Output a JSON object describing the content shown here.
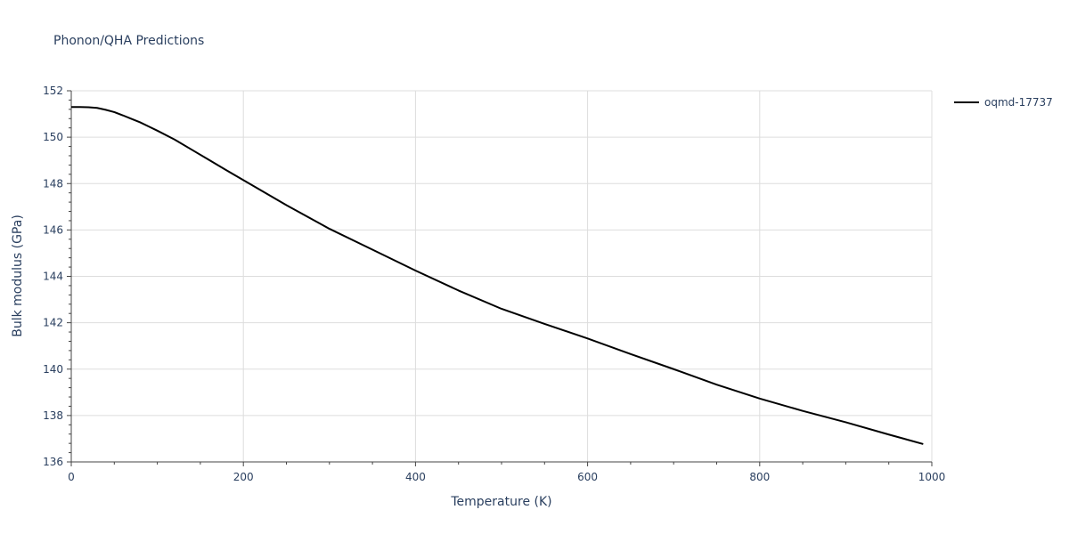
{
  "chart_data": {
    "type": "line",
    "title": "Phonon/QHA Predictions",
    "xlabel": "Temperature (K)",
    "ylabel": "Bulk modulus (GPa)",
    "xlim": [
      0,
      1000
    ],
    "ylim": [
      136,
      152
    ],
    "x_ticks": [
      0,
      200,
      400,
      600,
      800,
      1000
    ],
    "y_ticks": [
      136,
      138,
      140,
      142,
      144,
      146,
      148,
      150,
      152
    ],
    "grid": true,
    "legend_position": "top-right",
    "series": [
      {
        "name": "oqmd-17737",
        "color": "#000000",
        "x": [
          0,
          10,
          20,
          30,
          40,
          50,
          60,
          70,
          80,
          90,
          100,
          120,
          140,
          160,
          180,
          200,
          250,
          300,
          350,
          400,
          450,
          500,
          550,
          600,
          650,
          700,
          750,
          800,
          850,
          900,
          950,
          990
        ],
        "y": [
          151.3,
          151.3,
          151.29,
          151.26,
          151.18,
          151.08,
          150.94,
          150.79,
          150.64,
          150.46,
          150.28,
          149.9,
          149.46,
          149.02,
          148.58,
          148.15,
          147.07,
          146.05,
          145.15,
          144.25,
          143.39,
          142.6,
          141.95,
          141.32,
          140.65,
          140.0,
          139.33,
          138.73,
          138.2,
          137.71,
          137.18,
          136.77
        ]
      }
    ]
  }
}
